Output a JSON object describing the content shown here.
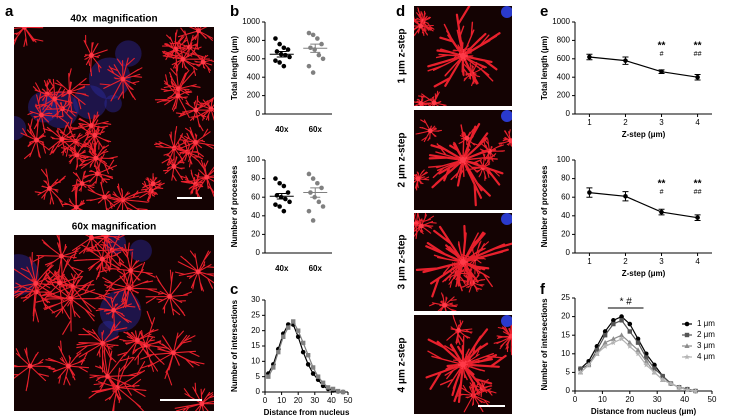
{
  "panels": {
    "labels": [
      "a",
      "b",
      "c",
      "d",
      "e",
      "f"
    ],
    "a_titles": [
      "40x  magnification",
      "60x magnification"
    ],
    "d_titles": [
      "1 μm z-step",
      "2 μm z-step",
      "3 μm z-step",
      "4 μm z-step"
    ]
  },
  "chart_data": [
    {
      "type": "dot",
      "ylabel": "Total length (μm)",
      "categories": [
        "40x",
        "60x"
      ],
      "colors": [
        "#000000",
        "#808080"
      ],
      "groups": [
        {
          "values": [
            820,
            760,
            720,
            700,
            680,
            650,
            640,
            620,
            580,
            560,
            520
          ],
          "mean": 650,
          "error": 30
        },
        {
          "values": [
            880,
            860,
            820,
            760,
            720,
            700,
            640,
            600,
            520,
            450
          ],
          "mean": 715,
          "error": 45
        }
      ],
      "ylim": [
        0,
        1000
      ],
      "yticks": [
        0,
        200,
        400,
        600,
        800,
        1000
      ]
    },
    {
      "type": "dot",
      "ylabel": "Number of processes",
      "categories": [
        "40x",
        "60x"
      ],
      "colors": [
        "#000000",
        "#808080"
      ],
      "groups": [
        {
          "values": [
            80,
            75,
            72,
            65,
            62,
            60,
            58,
            55,
            52,
            50,
            45
          ],
          "mean": 61,
          "error": 3
        },
        {
          "values": [
            85,
            80,
            75,
            70,
            65,
            60,
            55,
            50,
            45,
            35
          ],
          "mean": 65,
          "error": 5
        }
      ],
      "ylim": [
        0,
        100
      ],
      "yticks": [
        0,
        20,
        40,
        60,
        80,
        100
      ]
    },
    {
      "type": "line",
      "xlabel": "Distance from nucleus",
      "ylabel": "Number of intersections",
      "x": [
        2,
        5,
        8,
        11,
        14,
        17,
        20,
        23,
        26,
        29,
        32,
        35,
        38,
        41,
        44,
        47
      ],
      "xlim": [
        0,
        50
      ],
      "xticks": [
        0,
        10,
        20,
        30,
        40,
        50
      ],
      "ylim": [
        0,
        30
      ],
      "yticks": [
        0,
        5,
        10,
        15,
        20,
        25,
        30
      ],
      "series": [
        {
          "color": "#000000",
          "marker": "circle",
          "values": [
            6,
            9,
            14,
            19,
            22,
            22,
            18,
            13,
            9,
            6,
            4,
            2,
            1,
            0.5,
            0.2,
            0
          ]
        },
        {
          "color": "#808080",
          "marker": "square",
          "values": [
            5,
            8,
            13,
            18,
            21,
            23,
            20,
            16,
            12,
            8,
            5,
            3,
            1.5,
            1,
            0.3,
            0
          ]
        }
      ]
    },
    {
      "type": "line",
      "xlabel": "Z-step (μm)",
      "ylabel": "Total length (μm)",
      "x": [
        1,
        2,
        3,
        4
      ],
      "xlim": [
        0.6,
        4.4
      ],
      "xticks": [
        1,
        2,
        3,
        4
      ],
      "ylim": [
        0,
        1000
      ],
      "yticks": [
        0,
        200,
        400,
        600,
        800,
        1000
      ],
      "series": [
        {
          "color": "#000000",
          "marker": "circle",
          "values": [
            620,
            580,
            460,
            400
          ],
          "errors": [
            30,
            40,
            20,
            30
          ]
        }
      ],
      "annotations": [
        {
          "x": 3,
          "lines": [
            "**",
            "#"
          ]
        },
        {
          "x": 4,
          "lines": [
            "**",
            "##"
          ]
        }
      ]
    },
    {
      "type": "line",
      "xlabel": "Z-step (μm)",
      "ylabel": "Number of processes",
      "x": [
        1,
        2,
        3,
        4
      ],
      "xlim": [
        0.6,
        4.4
      ],
      "xticks": [
        1,
        2,
        3,
        4
      ],
      "ylim": [
        0,
        100
      ],
      "yticks": [
        0,
        20,
        40,
        60,
        80,
        100
      ],
      "series": [
        {
          "color": "#000000",
          "marker": "circle",
          "values": [
            65,
            61,
            44,
            38
          ],
          "errors": [
            5,
            5,
            3,
            3
          ]
        }
      ],
      "annotations": [
        {
          "x": 3,
          "lines": [
            "**",
            "#"
          ]
        },
        {
          "x": 4,
          "lines": [
            "**",
            "##"
          ]
        }
      ]
    },
    {
      "type": "line",
      "xlabel": "Distance from nucleus (μm)",
      "ylabel": "Number of intersections",
      "x": [
        2,
        5,
        8,
        11,
        14,
        17,
        20,
        23,
        26,
        29,
        32,
        35,
        38,
        41,
        44
      ],
      "xlim": [
        0,
        50
      ],
      "xticks": [
        0,
        10,
        20,
        30,
        40,
        50
      ],
      "ylim": [
        0,
        25
      ],
      "yticks": [
        0,
        5,
        10,
        15,
        20,
        25
      ],
      "legend": "right",
      "series": [
        {
          "name": "1 μm",
          "color": "#000000",
          "marker": "circle",
          "values": [
            6,
            8,
            12,
            16,
            19,
            20,
            18,
            14,
            10,
            7,
            4,
            2,
            1,
            0.5,
            0
          ]
        },
        {
          "name": "2 μm",
          "color": "#555555",
          "marker": "square",
          "values": [
            6,
            7,
            11,
            15,
            18,
            19,
            16,
            13,
            9,
            6,
            4,
            2,
            1,
            0.5,
            0
          ]
        },
        {
          "name": "3 μm",
          "color": "#8c8c8c",
          "marker": "triangle",
          "values": [
            5,
            7,
            10,
            13,
            14,
            15,
            13,
            11,
            8,
            5,
            3,
            2,
            1,
            0.3,
            0
          ]
        },
        {
          "name": "4 μm",
          "color": "#b4b4b4",
          "marker": "star",
          "values": [
            5,
            7,
            10,
            12,
            13,
            14,
            12,
            10,
            7,
            5,
            3,
            2,
            1,
            0.3,
            0
          ]
        }
      ],
      "brackets": [
        {
          "text": "* #",
          "from": 12,
          "to": 25
        }
      ]
    }
  ]
}
